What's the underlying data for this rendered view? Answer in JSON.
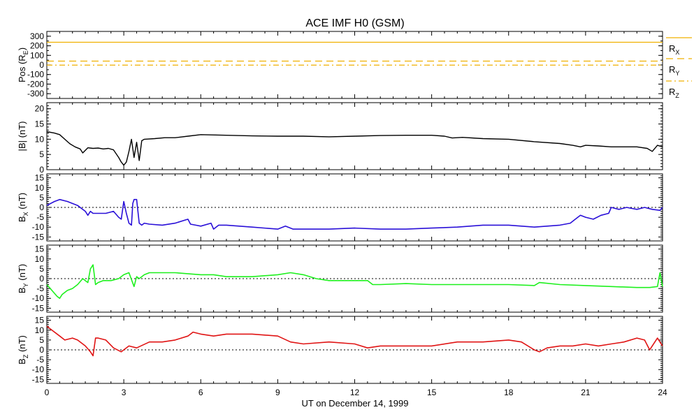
{
  "title": "ACE IMF H0 (GSM)",
  "xlabel": "UT on December 14, 1999",
  "xticks": [
    "0",
    "3",
    "6",
    "9",
    "12",
    "15",
    "18",
    "21",
    "24"
  ],
  "colors": {
    "pos": "#f0b000",
    "b": "#000000",
    "bx": "#2a10d8",
    "by": "#1ef01e",
    "bz": "#e01414",
    "zero": "#000000"
  },
  "panels": [
    {
      "ylabel": {
        "base": "Pos",
        "paren_open": " (R",
        "sub": "E",
        "paren_close": ")"
      },
      "yticks": [
        "300",
        "200",
        "100",
        "0",
        "-100",
        "-200",
        "-300"
      ],
      "legend": [
        {
          "base": "R",
          "sub": "X"
        },
        {
          "base": "R",
          "sub": "Y"
        },
        {
          "base": "R",
          "sub": "Z"
        }
      ]
    },
    {
      "ylabel": {
        "base": "|B|",
        "paren_open": " (nT)",
        "sub": "",
        "paren_close": ""
      },
      "yticks": [
        "20",
        "15",
        "10",
        "5",
        "0"
      ]
    },
    {
      "ylabel": {
        "base": "B",
        "sub": "X",
        "paren_open": " (nT)",
        "paren_close": ""
      },
      "yticks": [
        "15",
        "10",
        "5",
        "0",
        "-5",
        "-10",
        "-15"
      ]
    },
    {
      "ylabel": {
        "base": "B",
        "sub": "Y",
        "paren_open": " (nT)",
        "paren_close": ""
      },
      "yticks": [
        "15",
        "10",
        "5",
        "0",
        "-5",
        "-10",
        "-15"
      ]
    },
    {
      "ylabel": {
        "base": "B",
        "sub": "Z",
        "paren_open": " (nT)",
        "paren_close": ""
      },
      "yticks": [
        "15",
        "10",
        "5",
        "0",
        "-5",
        "-10",
        "-15"
      ]
    }
  ],
  "chart_data": [
    {
      "type": "line",
      "panel": "Pos",
      "xlim": [
        0,
        24
      ],
      "ylim": [
        -350,
        350
      ],
      "series": [
        {
          "name": "RX",
          "style": "solid",
          "x": [
            0,
            24
          ],
          "y": [
            237,
            237
          ]
        },
        {
          "name": "RY",
          "style": "dashed",
          "x": [
            0,
            24
          ],
          "y": [
            40,
            40
          ]
        },
        {
          "name": "RZ",
          "style": "dash-dot",
          "x": [
            0,
            24
          ],
          "y": [
            -2,
            -2
          ]
        }
      ]
    },
    {
      "type": "line",
      "panel": "|B|",
      "xlim": [
        0,
        24
      ],
      "ylim": [
        0,
        22
      ],
      "series": [
        {
          "x": [
            0,
            0.3,
            0.5,
            0.7,
            0.9,
            1.1,
            1.3,
            1.4,
            1.6,
            1.8,
            2.0,
            2.2,
            2.4,
            2.6,
            2.8,
            2.9,
            3.0,
            3.1,
            3.2,
            3.3,
            3.4,
            3.5,
            3.6,
            3.7,
            3.8,
            4.2,
            4.6,
            5.0,
            5.5,
            6.0,
            7.0,
            8.0,
            9.0,
            10.0,
            11.0,
            12.0,
            13.0,
            14.0,
            15.0,
            15.5,
            15.8,
            16.2,
            17.0,
            18.0,
            19.0,
            20.0,
            20.5,
            20.8,
            21.0,
            21.5,
            22.0,
            23.0,
            23.4,
            23.6,
            23.8,
            24.0
          ],
          "y": [
            12.5,
            12,
            11.5,
            10,
            8.5,
            7.5,
            6.8,
            5.5,
            7.2,
            7.0,
            7.1,
            6.8,
            7.0,
            6.5,
            4.0,
            2.5,
            1.5,
            2.5,
            6.0,
            10.0,
            4.0,
            9.0,
            3.0,
            9.5,
            10.0,
            10.2,
            10.5,
            10.5,
            11.0,
            11.5,
            11.3,
            11.1,
            11.0,
            11.0,
            10.8,
            11.0,
            11.2,
            11.3,
            11.3,
            11.0,
            10.4,
            10.6,
            10.2,
            10.0,
            9.2,
            8.6,
            8.0,
            7.5,
            8.0,
            7.8,
            7.5,
            7.5,
            7.0,
            6.0,
            8.0,
            7.5
          ]
        }
      ]
    },
    {
      "type": "line",
      "panel": "BX",
      "xlim": [
        0,
        24
      ],
      "ylim": [
        -17,
        17
      ],
      "series": [
        {
          "x": [
            0,
            0.3,
            0.5,
            0.8,
            1.0,
            1.2,
            1.5,
            1.6,
            1.7,
            1.8,
            2.0,
            2.3,
            2.6,
            2.8,
            2.9,
            3.0,
            3.1,
            3.2,
            3.3,
            3.35,
            3.4,
            3.5,
            3.6,
            3.7,
            3.8,
            4.0,
            4.5,
            5.0,
            5.5,
            5.6,
            5.8,
            6.0,
            6.4,
            6.5,
            6.7,
            7.0,
            8.0,
            9.0,
            9.3,
            9.6,
            10.0,
            11.0,
            12.0,
            13.0,
            14.0,
            15.0,
            16.0,
            17.0,
            18.0,
            19.0,
            20.0,
            20.4,
            20.6,
            20.8,
            21.0,
            21.3,
            21.6,
            21.9,
            22.0,
            22.3,
            22.6,
            23.0,
            23.3,
            23.6,
            23.9,
            24.0
          ],
          "y": [
            1,
            3,
            4,
            3,
            2,
            1,
            -2,
            -4,
            -2,
            -3,
            -3,
            -3,
            -2,
            -5,
            -6,
            3,
            -3,
            -8,
            -9,
            2,
            4,
            4,
            -8,
            -9,
            -8,
            -8.5,
            -9,
            -8,
            -6,
            -8.5,
            -9,
            -9.5,
            -8,
            -11,
            -9,
            -9,
            -10,
            -11,
            -9.5,
            -11,
            -11,
            -11,
            -10.5,
            -11,
            -11,
            -10.5,
            -10,
            -9,
            -9,
            -10,
            -9,
            -8,
            -6,
            -4,
            -5,
            -6,
            -4,
            -3,
            0,
            -1,
            0,
            -1,
            0,
            -1,
            -1.5,
            0
          ]
        }
      ]
    },
    {
      "type": "line",
      "panel": "BY",
      "xlim": [
        0,
        24
      ],
      "ylim": [
        -17,
        17
      ],
      "series": [
        {
          "x": [
            0,
            0.2,
            0.4,
            0.5,
            0.6,
            0.8,
            1.0,
            1.2,
            1.4,
            1.6,
            1.7,
            1.8,
            1.9,
            2.0,
            2.2,
            2.5,
            2.8,
            3.0,
            3.2,
            3.4,
            3.5,
            3.6,
            3.8,
            4.0,
            5.0,
            6.0,
            6.5,
            7.0,
            8.0,
            9.0,
            9.5,
            10.0,
            10.5,
            11.0,
            11.5,
            12.0,
            12.5,
            12.7,
            13.0,
            14.0,
            15.0,
            16.0,
            17.0,
            18.0,
            19.0,
            19.2,
            20.0,
            21.0,
            22.0,
            23.0,
            23.5,
            23.8,
            23.9,
            24.0
          ],
          "y": [
            -3,
            -6,
            -9,
            -10,
            -8,
            -6,
            -5,
            -3,
            0,
            -2,
            5,
            7,
            -3,
            -2,
            -1,
            -1,
            0,
            2,
            3,
            -4,
            1,
            0,
            2,
            3,
            3,
            2,
            2,
            1,
            1,
            2,
            3,
            2,
            0,
            -1,
            -1,
            -1,
            -1,
            -3,
            -3,
            -2.5,
            -3,
            -3,
            -3,
            -3,
            -3.5,
            -2,
            -3,
            -3.5,
            -4,
            -4.5,
            -4.5,
            -4,
            3,
            -4
          ]
        }
      ]
    },
    {
      "type": "line",
      "panel": "BZ",
      "xlim": [
        0,
        24
      ],
      "ylim": [
        -17,
        17
      ],
      "series": [
        {
          "x": [
            0,
            0.2,
            0.5,
            0.7,
            1.0,
            1.2,
            1.5,
            1.7,
            1.8,
            1.9,
            2.0,
            2.3,
            2.6,
            2.9,
            3.0,
            3.2,
            3.5,
            4.0,
            4.5,
            5.0,
            5.5,
            5.7,
            6.0,
            6.5,
            7.0,
            8.0,
            9.0,
            9.5,
            10.0,
            11.0,
            12.0,
            12.5,
            13.0,
            14.0,
            15.0,
            16.0,
            17.0,
            18.0,
            18.5,
            19.0,
            19.2,
            19.5,
            20.0,
            20.5,
            21.0,
            21.5,
            22.0,
            22.5,
            23.0,
            23.3,
            23.5,
            23.8,
            24.0
          ],
          "y": [
            12,
            10,
            7,
            5,
            6,
            5,
            2,
            -1,
            -3,
            6,
            6,
            5,
            1,
            -1,
            0,
            2,
            1,
            4,
            4,
            5,
            7,
            9,
            8,
            7,
            8,
            8,
            7,
            4,
            3,
            4,
            3,
            1,
            2,
            2,
            2,
            4,
            4,
            5,
            4,
            0,
            -1,
            1,
            2,
            2,
            3,
            2,
            3,
            4,
            6,
            5,
            0,
            6,
            2
          ]
        }
      ]
    }
  ]
}
